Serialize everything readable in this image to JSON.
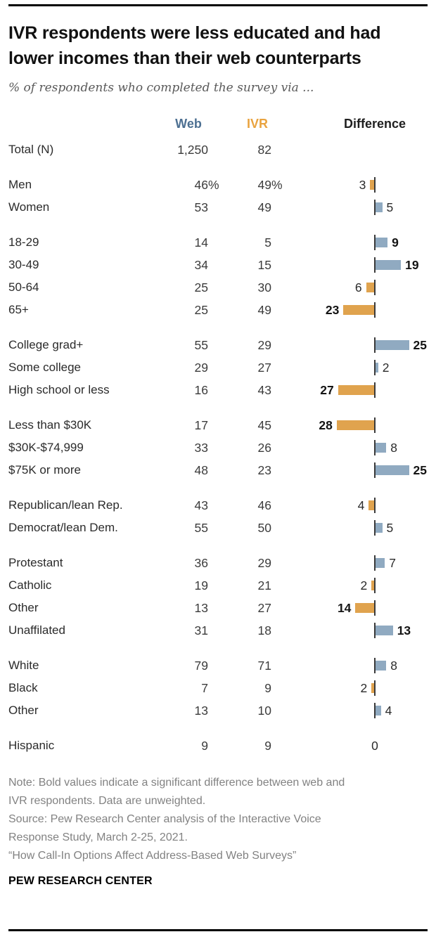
{
  "colors": {
    "web_header": "#4D7092",
    "ivr_header": "#E9A33F",
    "bar_web": "#90AAC1",
    "bar_ivr": "#E0A34E",
    "axis_tick": "#3A3A3A"
  },
  "chart_data": {
    "type": "table",
    "title": "IVR respondents were less educated and had lower incomes than their web counterparts",
    "subtitle": "% of respondents who completed the survey via ...",
    "columns": [
      "Web",
      "IVR",
      "Difference"
    ],
    "difference_encoding": "diverging bar; bar extends right (blue) when Web is higher, left (orange) when IVR is higher; bold value = significant difference",
    "rows": [
      {
        "label": "Total (N)",
        "web": "1,250",
        "ivr": "82",
        "diff": null,
        "higher": null,
        "significant": false,
        "group_start": false
      },
      {
        "label": "Men",
        "web": "46%",
        "ivr": "49%",
        "diff": 3,
        "higher": "IVR",
        "significant": false,
        "group_start": true
      },
      {
        "label": "Women",
        "web": "53",
        "ivr": "49",
        "diff": 5,
        "higher": "Web",
        "significant": false,
        "group_start": false
      },
      {
        "label": "18-29",
        "web": "14",
        "ivr": "5",
        "diff": 9,
        "higher": "Web",
        "significant": true,
        "group_start": true
      },
      {
        "label": "30-49",
        "web": "34",
        "ivr": "15",
        "diff": 19,
        "higher": "Web",
        "significant": true,
        "group_start": false
      },
      {
        "label": "50-64",
        "web": "25",
        "ivr": "30",
        "diff": 6,
        "higher": "IVR",
        "significant": false,
        "group_start": false
      },
      {
        "label": "65+",
        "web": "25",
        "ivr": "49",
        "diff": 23,
        "higher": "IVR",
        "significant": true,
        "group_start": false
      },
      {
        "label": "College grad+",
        "web": "55",
        "ivr": "29",
        "diff": 25,
        "higher": "Web",
        "significant": true,
        "group_start": true
      },
      {
        "label": "Some college",
        "web": "29",
        "ivr": "27",
        "diff": 2,
        "higher": "Web",
        "significant": false,
        "group_start": false
      },
      {
        "label": "High school or less",
        "web": "16",
        "ivr": "43",
        "diff": 27,
        "higher": "IVR",
        "significant": true,
        "group_start": false
      },
      {
        "label": "Less than $30K",
        "web": "17",
        "ivr": "45",
        "diff": 28,
        "higher": "IVR",
        "significant": true,
        "group_start": true
      },
      {
        "label": "$30K-$74,999",
        "web": "33",
        "ivr": "26",
        "diff": 8,
        "higher": "Web",
        "significant": false,
        "group_start": false
      },
      {
        "label": "$75K or more",
        "web": "48",
        "ivr": "23",
        "diff": 25,
        "higher": "Web",
        "significant": true,
        "group_start": false
      },
      {
        "label": "Republican/lean Rep.",
        "web": "43",
        "ivr": "46",
        "diff": 4,
        "higher": "IVR",
        "significant": false,
        "group_start": true
      },
      {
        "label": "Democrat/lean Dem.",
        "web": "55",
        "ivr": "50",
        "diff": 5,
        "higher": "Web",
        "significant": false,
        "group_start": false
      },
      {
        "label": "Protestant",
        "web": "36",
        "ivr": "29",
        "diff": 7,
        "higher": "Web",
        "significant": false,
        "group_start": true
      },
      {
        "label": "Catholic",
        "web": "19",
        "ivr": "21",
        "diff": 2,
        "higher": "IVR",
        "significant": false,
        "group_start": false
      },
      {
        "label": "Other",
        "web": "13",
        "ivr": "27",
        "diff": 14,
        "higher": "IVR",
        "significant": true,
        "group_start": false
      },
      {
        "label": "Unaffilated",
        "web": "31",
        "ivr": "18",
        "diff": 13,
        "higher": "Web",
        "significant": true,
        "group_start": false
      },
      {
        "label": "White",
        "web": "79",
        "ivr": "71",
        "diff": 8,
        "higher": "Web",
        "significant": false,
        "group_start": true
      },
      {
        "label": "Black",
        "web": "7",
        "ivr": "9",
        "diff": 2,
        "higher": "IVR",
        "significant": false,
        "group_start": false
      },
      {
        "label": "Other",
        "web": "13",
        "ivr": "10",
        "diff": 4,
        "higher": "Web",
        "significant": false,
        "group_start": false
      },
      {
        "label": "Hispanic",
        "web": "9",
        "ivr": "9",
        "diff": 0,
        "higher": "none",
        "significant": false,
        "group_start": true
      }
    ]
  },
  "footer": {
    "note": "Note: Bold values indicate a significant difference between web and IVR respondents. Data are unweighted.",
    "source": "Source: Pew Research Center analysis of the Interactive Voice Response Study, March 2-25, 2021.",
    "quote": "“How Call-In Options Affect Address-Based Web Surveys”",
    "brand": "PEW RESEARCH CENTER"
  }
}
